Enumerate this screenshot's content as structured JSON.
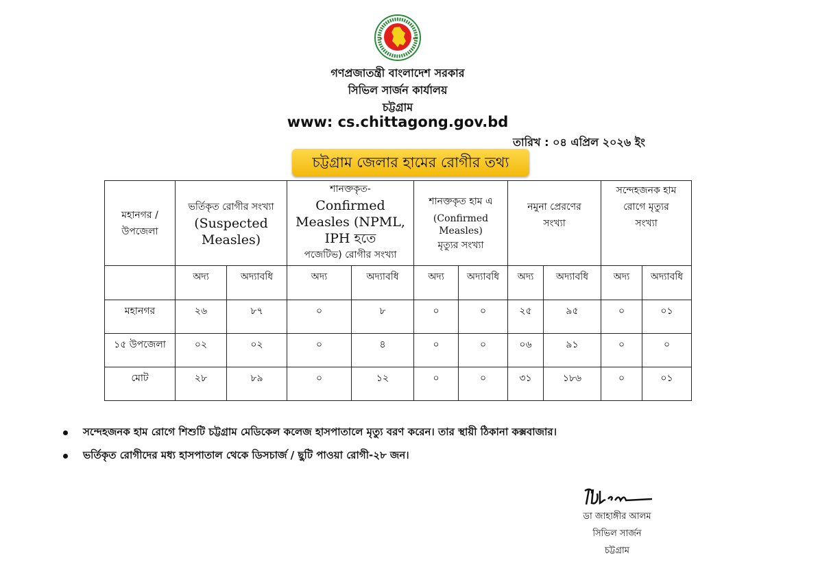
{
  "header": {
    "logo": "government-of-bangladesh-seal",
    "line1": "গণপ্রজাতন্ত্রী বাংলাদেশ সরকার",
    "line2": "সিভিল সার্জন কার্যালয়",
    "line3": "চট্টগ্রাম",
    "website": "www: cs.chittagong.gov.bd",
    "date": "তারিখ : ০৪ এপ্রিল ২০২৬ ইং"
  },
  "banner": {
    "title": "চট্টগ্রাম জেলার হামের রোগীর তথ্য",
    "color": "#f7c520"
  },
  "table": {
    "area_header": "মহানগর /উপজেলা",
    "groups": [
      {
        "bn": "ভর্তিকৃত রোগীর সংখ্যা",
        "en": "(Suspected Measles)"
      },
      {
        "bn_pre": "শানক্তকৃত-",
        "en": "Confirmed Measles (NPML, IPH হতে",
        "bn": "পজেটিভ) রোগীর সংখ্যা"
      },
      {
        "bn_pre": "শানক্তকৃত হাম এ",
        "en": "(Confirmed Measles)",
        "bn": "মৃত্যুর সংখ্যা"
      },
      {
        "bn": "নমুনা প্রেরণের সংখ্যা"
      },
      {
        "bn": "সন্দেহজনক হাম রোগে মৃত্যুর সংখ্যা"
      }
    ],
    "sub_today": "অদ্য",
    "sub_todate": "অদ্যাবধি",
    "rows": [
      {
        "area": "মহানগর",
        "values": [
          "২৬",
          "৮৭",
          "০",
          "৮",
          "০",
          "০",
          "২৫",
          "৯৫",
          "০",
          "০১"
        ]
      },
      {
        "area": "১৫ উপজেলা",
        "values": [
          "০২",
          "০২",
          "০",
          "৪",
          "০",
          "০",
          "০৬",
          "৯১",
          "০",
          "০"
        ]
      },
      {
        "area": "মোট",
        "values": [
          "২৮",
          "৮৯",
          "০",
          "১২",
          "০",
          "০",
          "৩১",
          "১৮৬",
          "০",
          "০১"
        ]
      }
    ]
  },
  "notes": [
    "সন্দেহজনক হাম রোগে  শিশুটি চট্টগ্রাম মেডিকেল কলেজ হাসপাতালে মৃত্যু বরণ করেন। তার স্থায়ী ঠিকানা কক্সবাজার।",
    "ভর্তিকৃত রোগীদের মধ্য  হাসপাতাল থেকে ডিসচার্জ / ছুটি পাওয়া রোগী-২৮ জন।"
  ],
  "signature": {
    "name": "ডা জাহাঙ্গীর আলম",
    "designation": "সিভিল সার্জন",
    "location": "চট্টগ্রাম"
  }
}
